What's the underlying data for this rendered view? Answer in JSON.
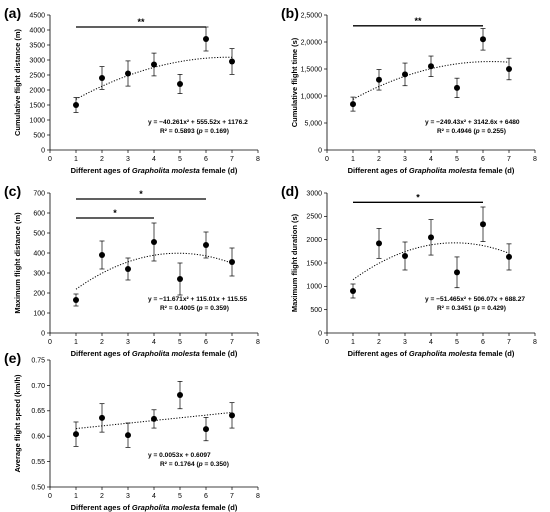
{
  "chart_data": [
    {
      "type": "scatter",
      "panel": "(a)",
      "ylabel": "Cumulative flight distance (m)",
      "xlabel": [
        "Different ages of ",
        "Grapholita molesta",
        " female (d)"
      ],
      "x": [
        1,
        2,
        3,
        4,
        5,
        6,
        7
      ],
      "y": [
        1500,
        2400,
        2550,
        2850,
        2200,
        3700,
        2950
      ],
      "err": [
        250,
        380,
        420,
        380,
        320,
        400,
        430
      ],
      "xlim": [
        0,
        8
      ],
      "ylim": [
        0,
        4500
      ],
      "yticks": [
        0,
        500,
        1000,
        1500,
        2000,
        2500,
        3000,
        3500,
        4000,
        4500
      ],
      "ytick_labels": [
        "0",
        "500",
        "1000",
        "1500",
        "2000",
        "2500",
        "3000",
        "3500",
        "4000",
        "4500"
      ],
      "xticks": [
        0,
        1,
        2,
        3,
        4,
        5,
        6,
        7,
        8
      ],
      "fit": {
        "a": -40.261,
        "b": 555.52,
        "c": 1176.2
      },
      "equation": "y = −40.261x² + 555.52x + 1176.2",
      "r2": [
        "R² = 0.5893  (",
        "p",
        " = 0.169)"
      ],
      "significance": [
        {
          "x1": 1,
          "x2": 6,
          "y": 4100,
          "label": "**"
        }
      ]
    },
    {
      "type": "scatter",
      "panel": "(b)",
      "ylabel": "Cumulative flight time (s)",
      "xlabel": [
        "Different ages of ",
        "Grapholita molesta",
        " female (d)"
      ],
      "x": [
        1,
        2,
        3,
        4,
        5,
        6,
        7
      ],
      "y": [
        8500,
        13000,
        14000,
        15500,
        11500,
        20500,
        15000
      ],
      "err": [
        1300,
        1900,
        2100,
        1900,
        1800,
        2000,
        2000
      ],
      "xlim": [
        0,
        8
      ],
      "ylim": [
        0,
        25000
      ],
      "yticks": [
        0,
        5000,
        10000,
        15000,
        20000,
        25000
      ],
      "ytick_labels": [
        "0",
        "5,000",
        "1,0000",
        "1,5000",
        "2,0000",
        "2,5000"
      ],
      "xticks": [
        0,
        1,
        2,
        3,
        4,
        5,
        6,
        7,
        8
      ],
      "fit": {
        "a": -249.43,
        "b": 3142.6,
        "c": 6480
      },
      "equation": "y = −249.43x² + 3142.6x + 6480",
      "r2": [
        "R² = 0.4946  (",
        "p",
        " = 0.255)"
      ],
      "significance": [
        {
          "x1": 1,
          "x2": 6,
          "y": 23000,
          "label": "**"
        }
      ]
    },
    {
      "type": "scatter",
      "panel": "(c)",
      "ylabel": "Maximum flight distance (m)",
      "xlabel": [
        "Different ages of ",
        "Grapholita molesta",
        " female (d)"
      ],
      "x": [
        1,
        2,
        3,
        4,
        5,
        6,
        7
      ],
      "y": [
        165,
        390,
        320,
        455,
        270,
        440,
        355
      ],
      "err": [
        30,
        70,
        55,
        95,
        80,
        65,
        70
      ],
      "xlim": [
        0,
        8
      ],
      "ylim": [
        0,
        700
      ],
      "yticks": [
        0,
        100,
        200,
        300,
        400,
        500,
        600,
        700
      ],
      "ytick_labels": [
        "0",
        "100",
        "200",
        "300",
        "400",
        "500",
        "600",
        "700"
      ],
      "xticks": [
        0,
        1,
        2,
        3,
        4,
        5,
        6,
        7,
        8
      ],
      "fit": {
        "a": -11.671,
        "b": 115.01,
        "c": 115.55
      },
      "equation": "y = −11.671x² + 115.01x + 115.55",
      "r2": [
        "R² = 0.4005  (",
        "p",
        " = 0.359)"
      ],
      "significance": [
        {
          "x1": 1,
          "x2": 6,
          "y": 670,
          "label": "*"
        },
        {
          "x1": 1,
          "x2": 4,
          "y": 575,
          "label": "*"
        }
      ]
    },
    {
      "type": "scatter",
      "panel": "(d)",
      "ylabel": "Maximum flight duration (s)",
      "xlabel": [
        "Different ages of ",
        "Grapholita molesta",
        " female (d)"
      ],
      "x": [
        1,
        2,
        3,
        4,
        5,
        6,
        7
      ],
      "y": [
        900,
        1920,
        1650,
        2050,
        1300,
        2330,
        1630
      ],
      "err": [
        150,
        320,
        300,
        380,
        330,
        370,
        280
      ],
      "xlim": [
        0,
        8
      ],
      "ylim": [
        0,
        3000
      ],
      "yticks": [
        0,
        500,
        1000,
        1500,
        2000,
        2500,
        3000
      ],
      "ytick_labels": [
        "0",
        "500",
        "1000",
        "1500",
        "2000",
        "2500",
        "3000"
      ],
      "xticks": [
        0,
        1,
        2,
        3,
        4,
        5,
        6,
        7,
        8
      ],
      "fit": {
        "a": -51.465,
        "b": 506.07,
        "c": 688.27
      },
      "equation": "y = −51.465x² + 506.07x + 688.27",
      "r2": [
        "R² = 0.3451  (",
        "p",
        " = 0.429)"
      ],
      "significance": [
        {
          "x1": 1,
          "x2": 6,
          "y": 2800,
          "label": "*"
        }
      ]
    },
    {
      "type": "scatter",
      "panel": "(e)",
      "ylabel": "Average flight speed (km/h)",
      "xlabel": [
        "Different ages of ",
        "Grapholita molesta",
        " female (d)"
      ],
      "x": [
        1,
        2,
        3,
        4,
        5,
        6,
        7
      ],
      "y": [
        0.604,
        0.636,
        0.602,
        0.634,
        0.681,
        0.614,
        0.641
      ],
      "err": [
        0.024,
        0.028,
        0.024,
        0.018,
        0.027,
        0.023,
        0.025
      ],
      "xlim": [
        0,
        8
      ],
      "ylim": [
        0.5,
        0.75
      ],
      "yticks": [
        0.5,
        0.55,
        0.6,
        0.65,
        0.7,
        0.75
      ],
      "ytick_labels": [
        "0.50",
        "0.55",
        "0.60",
        "0.65",
        "0.70",
        "0.75"
      ],
      "xticks": [
        0,
        1,
        2,
        3,
        4,
        5,
        6,
        7,
        8
      ],
      "fit": {
        "a": 0,
        "b": 0.0053,
        "c": 0.6097
      },
      "equation": "y = 0.0053x + 0.6097",
      "r2": [
        "R² = 0.1764  (",
        "p",
        " = 0.350)"
      ],
      "significance": []
    }
  ]
}
